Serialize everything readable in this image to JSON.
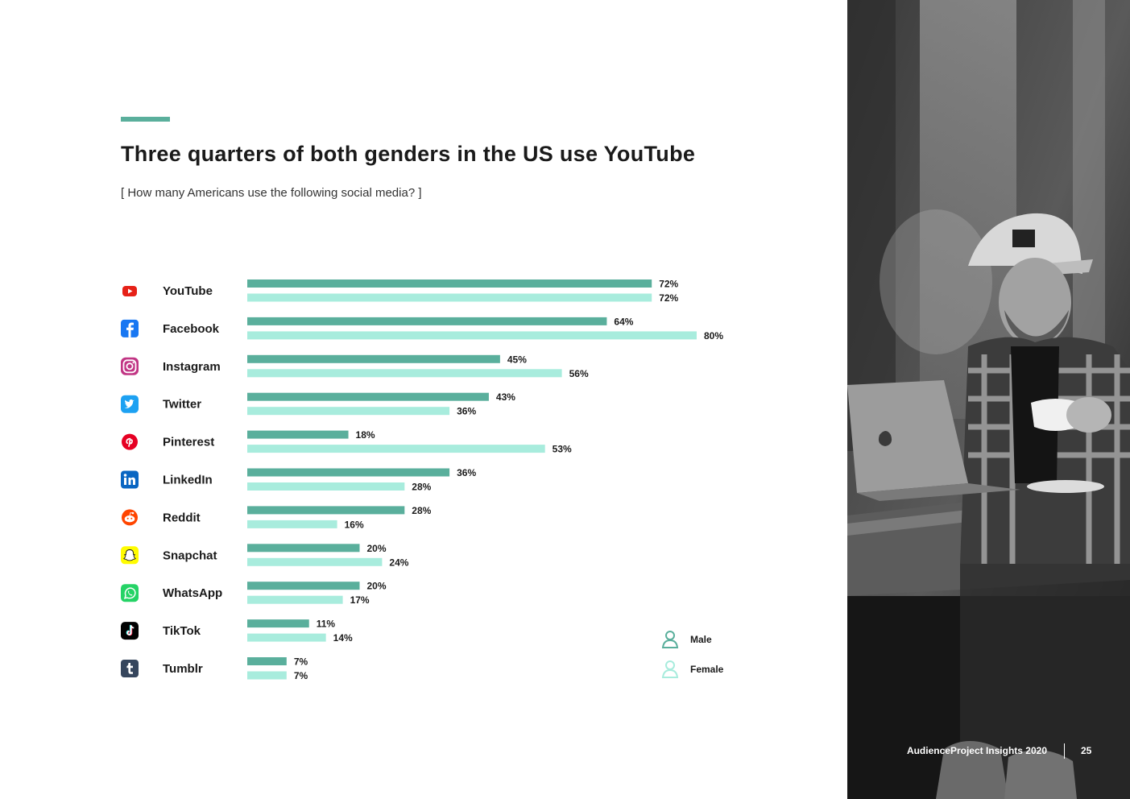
{
  "title": "Three quarters of both genders in the US use YouTube",
  "subtitle": "[ How many Americans use the following social media? ]",
  "footer": {
    "brand": "AudienceProject Insights 2020",
    "page": "25"
  },
  "colors": {
    "male": "#5aaf9c",
    "female": "#a8ecdd",
    "accent": "#5aaf9c"
  },
  "chart_data": {
    "type": "bar",
    "orientation": "horizontal",
    "categories": [
      "YouTube",
      "Facebook",
      "Instagram",
      "Twitter",
      "Pinterest",
      "LinkedIn",
      "Reddit",
      "Snapchat",
      "WhatsApp",
      "TikTok",
      "Tumblr"
    ],
    "category_icons": [
      "youtube-icon",
      "facebook-icon",
      "instagram-icon",
      "twitter-icon",
      "pinterest-icon",
      "linkedin-icon",
      "reddit-icon",
      "snapchat-icon",
      "whatsapp-icon",
      "tiktok-icon",
      "tumblr-icon"
    ],
    "series": [
      {
        "name": "Male",
        "values": [
          72,
          64,
          45,
          43,
          18,
          36,
          28,
          20,
          20,
          11,
          7
        ]
      },
      {
        "name": "Female",
        "values": [
          72,
          80,
          56,
          36,
          53,
          28,
          16,
          24,
          17,
          14,
          7
        ]
      }
    ],
    "value_suffix": "%",
    "xlim": [
      0,
      100
    ],
    "legend_position": "bottom-right",
    "grid": false
  }
}
